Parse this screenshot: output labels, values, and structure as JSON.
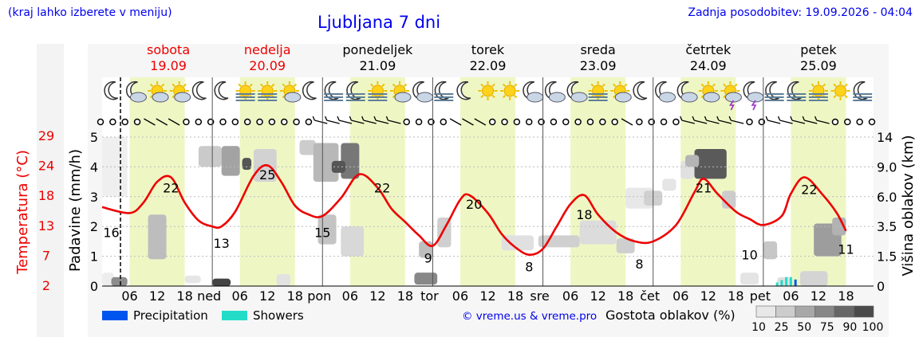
{
  "header": {
    "hint": "(kraj lahko izberete v meniju)",
    "title": "Ljubljana 7 dni",
    "updated": "Zadnja posodobitev: 19.09.2026 - 04:04"
  },
  "days": [
    {
      "name": "sobota",
      "date": "19.09",
      "weekend": true,
      "short": ""
    },
    {
      "name": "nedelja",
      "date": "20.09",
      "weekend": true,
      "short": "ned"
    },
    {
      "name": "ponedeljek",
      "date": "21.09",
      "weekend": false,
      "short": "pon"
    },
    {
      "name": "torek",
      "date": "22.09",
      "weekend": false,
      "short": "tor"
    },
    {
      "name": "sreda",
      "date": "23.09",
      "weekend": false,
      "short": "sre"
    },
    {
      "name": "četrtek",
      "date": "24.09",
      "weekend": false,
      "short": "čet"
    },
    {
      "name": "petek",
      "date": "25.09",
      "weekend": false,
      "short": "pet"
    }
  ],
  "hour_ticks": [
    "06",
    "12",
    "18"
  ],
  "legend": {
    "precipitation": "Precipitation",
    "showers": "Showers",
    "credit": "© vreme.us & vreme.pro",
    "cloud_title": "Gostota oblakov (%)",
    "cloud_levels": [
      "10",
      "25",
      "50",
      "75",
      "90",
      "100"
    ]
  },
  "colors": {
    "temperature": "#ee0000",
    "precipitation": "#0055ee",
    "showers": "#22dcc8",
    "daylight": "#eef7c4",
    "link": "#0000ee"
  },
  "icons": {
    "weather_row": [
      "moon-icon",
      "moon-cloud-icon",
      "sun-cloud-icon",
      "sun-cloud-icon",
      "moon-icon",
      "moon-icon",
      "sun-fog-icon",
      "sun-fog-icon",
      "sun-cloud-icon",
      "moon-icon",
      "moon-fog-icon",
      "moon-fog-icon",
      "sun-fog-icon",
      "sun-cloud-icon",
      "moon-cloud-icon",
      "moon-fog-icon",
      "moon-icon",
      "sun-icon",
      "sun-icon",
      "moon-cloud-icon",
      "moon-cloud-icon",
      "moon-cloud-icon",
      "sun-fog-icon",
      "sun-cloud-icon",
      "moon-icon",
      "moon-cloud-icon",
      "moon-cloud-icon",
      "sun-cloud-icon",
      "sun-storm-icon",
      "moon-storm-icon",
      "moon-fog-icon",
      "moon-fog-icon",
      "sun-fog-icon",
      "sun-icon",
      "moon-fog-icon"
    ],
    "wind_row": [
      "calm",
      "calm",
      "calm",
      "calm",
      "light-breeze",
      "light-breeze",
      "light-breeze",
      "calm",
      "calm",
      "calm",
      "calm",
      "calm",
      "calm",
      "calm",
      "calm",
      "calm",
      "calm",
      "calm",
      "breeze",
      "breeze",
      "breeze",
      "breeze",
      "breeze",
      "breeze",
      "breeze",
      "calm",
      "calm",
      "calm",
      "calm",
      "light-breeze",
      "light-breeze",
      "light-breeze",
      "calm",
      "calm",
      "calm",
      "calm",
      "calm",
      "calm",
      "calm",
      "calm",
      "calm",
      "calm",
      "calm",
      "light-breeze",
      "calm",
      "calm",
      "calm",
      "calm",
      "breeze",
      "breeze",
      "breeze",
      "breeze",
      "breeze",
      "calm",
      "calm",
      "breeze",
      "breeze",
      "breeze",
      "breeze",
      "breeze",
      "calm",
      "calm",
      "calm",
      "calm"
    ]
  },
  "chart_data": {
    "type": "line",
    "x_unit": "hours from 19.09 00:00",
    "ylabel_left": "Padavine (mm/h)",
    "ylabel_temp": "Temperatura (°C)",
    "ylabel_right": "Višina oblakov (km)",
    "precip_ylim": [
      0,
      5
    ],
    "precip_ticks": [
      "0",
      "1",
      "2",
      "3",
      "4",
      "5"
    ],
    "temp_ticks": [
      "2",
      "7",
      "13",
      "18",
      "24",
      "29"
    ],
    "cloud_km_ticks": [
      "0",
      "1.5",
      "3.5",
      "6.0",
      "9.0",
      "14"
    ],
    "temperature": [
      [
        0,
        2.65
      ],
      [
        6,
        2.45
      ],
      [
        9,
        2.8
      ],
      [
        12,
        3.5
      ],
      [
        15,
        3.65
      ],
      [
        18,
        2.8
      ],
      [
        21,
        2.2
      ],
      [
        24,
        2.0
      ],
      [
        26,
        2.0
      ],
      [
        29,
        2.5
      ],
      [
        33,
        3.7
      ],
      [
        36,
        4.05
      ],
      [
        39,
        3.5
      ],
      [
        42,
        2.7
      ],
      [
        45,
        2.4
      ],
      [
        48,
        2.35
      ],
      [
        52,
        2.95
      ],
      [
        56,
        3.75
      ],
      [
        60,
        3.3
      ],
      [
        63,
        2.6
      ],
      [
        66,
        2.15
      ],
      [
        69,
        1.7
      ],
      [
        72,
        1.35
      ],
      [
        75,
        2.05
      ],
      [
        78,
        2.9
      ],
      [
        80,
        3.05
      ],
      [
        84,
        2.45
      ],
      [
        87,
        1.75
      ],
      [
        90,
        1.3
      ],
      [
        93,
        1.05
      ],
      [
        96,
        1.25
      ],
      [
        99,
        2.0
      ],
      [
        102,
        2.75
      ],
      [
        105,
        3.05
      ],
      [
        108,
        2.4
      ],
      [
        112,
        1.8
      ],
      [
        116,
        1.5
      ],
      [
        120,
        1.5
      ],
      [
        125,
        2.05
      ],
      [
        129,
        3.15
      ],
      [
        131,
        3.6
      ],
      [
        134,
        3.1
      ],
      [
        138,
        2.5
      ],
      [
        141,
        2.25
      ],
      [
        144,
        2.05
      ],
      [
        148,
        2.35
      ],
      [
        150,
        3.1
      ],
      [
        153,
        3.65
      ],
      [
        157,
        3.05
      ],
      [
        160,
        2.45
      ],
      [
        162,
        1.85
      ]
    ],
    "temp_labels": [
      [
        2,
        "16",
        1.8
      ],
      [
        15,
        "22",
        3.3
      ],
      [
        26,
        "13",
        1.45
      ],
      [
        36,
        "25",
        3.75
      ],
      [
        48,
        "15",
        1.8
      ],
      [
        61,
        "22",
        3.3
      ],
      [
        71,
        "9",
        0.95
      ],
      [
        81,
        "20",
        2.75
      ],
      [
        93,
        "8",
        0.65
      ],
      [
        105,
        "18",
        2.4
      ],
      [
        117,
        "8",
        0.75
      ],
      [
        131,
        "21",
        3.3
      ],
      [
        141,
        "10",
        1.05
      ],
      [
        154,
        "22",
        3.25
      ],
      [
        162,
        "11",
        1.25
      ]
    ],
    "showers": [
      [
        147,
        0.12
      ],
      [
        148,
        0.2
      ],
      [
        149,
        0.3
      ],
      [
        150,
        0.3
      ]
    ],
    "precipitation": [
      [
        151,
        0.22
      ]
    ],
    "cloud_cover": [
      [
        1,
        7.5,
        0.2,
        5
      ],
      [
        3,
        8.5,
        0.0,
        0.35
      ],
      [
        2,
        3.5,
        2.3,
        4
      ],
      [
        11,
        1.5,
        1.0,
        2.3
      ],
      [
        5,
        1.0,
        2.0,
        1
      ],
      [
        22,
        2.5,
        4.1,
        4.6
      ],
      [
        27,
        4.0,
        3.6,
        4.6
      ],
      [
        33,
        6.0,
        3.2,
        4.6
      ],
      [
        30,
        3,
        3.9,
        4.2
      ],
      [
        24,
        4,
        0.0,
        0.3
      ],
      [
        44,
        3.0,
        3.5,
        4.0
      ],
      [
        56,
        4.5,
        4.0,
        4.6
      ],
      [
        50,
        5,
        3.0,
        4.2
      ],
      [
        48,
        2.5,
        2.5,
        3.2
      ],
      [
        54,
        6,
        1.0,
        2.0
      ],
      [
        47,
        2.2,
        1.6,
        2.2
      ],
      [
        70,
        4.0,
        0.0,
        0.4
      ],
      [
        73,
        2.5,
        1.5,
        2.3
      ],
      [
        71,
        2,
        0.9,
        1.5
      ],
      [
        93,
        3.0,
        1.0,
        1.6
      ],
      [
        110,
        5.0,
        1.4,
        2.3
      ],
      [
        101,
        3,
        1.6,
        1.9
      ],
      [
        100,
        2,
        0.8,
        1.2
      ],
      [
        118,
        4.5,
        2.6,
        3.3
      ],
      [
        114,
        2,
        1.0,
        1.5
      ],
      [
        124,
        2,
        3.2,
        3.6
      ],
      [
        131,
        6.0,
        3.6,
        4.6
      ],
      [
        127,
        2,
        3.6,
        4.0
      ],
      [
        146,
        3,
        1.0,
        2.0
      ],
      [
        140,
        3.5,
        0.1,
        0.4
      ],
      [
        148,
        2,
        0.0,
        0.35
      ],
      [
        156,
        6.0,
        0.9,
        2.1
      ],
      [
        159,
        2,
        1.8,
        2.3
      ]
    ],
    "cloud_layers": [
      [
        0,
        2.6,
        0.0,
        0.45,
        "#ededed"
      ],
      [
        0,
        5.5,
        3.0,
        5.0,
        "#efefef"
      ],
      [
        2,
        3.5,
        0.0,
        0.3,
        "#8c8c8c"
      ],
      [
        10,
        4,
        0.9,
        2.4,
        "#bdbdbd"
      ],
      [
        18,
        3.5,
        0.1,
        0.35,
        "#e6e6e6"
      ],
      [
        21,
        5,
        4.0,
        4.7,
        "#cacaca"
      ],
      [
        24,
        4,
        0.0,
        0.25,
        "#444444"
      ],
      [
        26,
        4.0,
        3.7,
        4.7,
        "#a3a3a3"
      ],
      [
        33,
        5.0,
        3.5,
        4.6,
        "#d2d2d2"
      ],
      [
        30.5,
        2,
        3.9,
        4.3,
        "#555555"
      ],
      [
        38,
        3,
        0.0,
        0.4,
        "#e2e2e2"
      ],
      [
        43,
        3.5,
        4.4,
        4.9,
        "#cccccc"
      ],
      [
        46,
        5.5,
        3.5,
        4.8,
        "#b8b8b8"
      ],
      [
        52,
        4,
        3.6,
        4.8,
        "#777777"
      ],
      [
        50,
        3,
        3.8,
        4.2,
        "#555555"
      ],
      [
        47,
        4,
        1.4,
        2.4,
        "#c4c4c4"
      ],
      [
        52,
        5,
        1.0,
        2.0,
        "#d8d8d8"
      ],
      [
        68,
        5,
        0.05,
        0.45,
        "#888888"
      ],
      [
        73,
        3,
        1.3,
        2.3,
        "#cfcfcf"
      ],
      [
        69,
        3,
        0.95,
        1.5,
        "#bebebe"
      ],
      [
        87,
        7,
        1.2,
        1.7,
        "#e0e0e0"
      ],
      [
        95,
        9,
        1.3,
        1.7,
        "#d0d0d0"
      ],
      [
        104,
        8,
        1.4,
        2.2,
        "#dcdcdc"
      ],
      [
        112,
        4,
        1.1,
        1.6,
        "#cfcfcf"
      ],
      [
        114,
        6,
        2.6,
        3.3,
        "#e8e8e8"
      ],
      [
        118,
        4,
        2.7,
        3.2,
        "#d0d0d0"
      ],
      [
        122,
        3,
        3.2,
        3.6,
        "#e5e5e5"
      ],
      [
        126,
        3,
        3.6,
        4.2,
        "#e0e0e0"
      ],
      [
        129,
        7,
        3.6,
        4.6,
        "#5a5a5a"
      ],
      [
        127,
        3,
        4.0,
        4.4,
        "#b5b5b5"
      ],
      [
        135,
        3,
        2.6,
        3.2,
        "#cccccc"
      ],
      [
        139,
        4,
        0.05,
        0.45,
        "#e4e4e4"
      ],
      [
        144,
        3,
        0.9,
        1.5,
        "#c7c7c7"
      ],
      [
        147,
        3,
        0.0,
        0.3,
        "#e0e0e0"
      ],
      [
        152,
        6,
        0.0,
        0.5,
        "#d4d4d4"
      ],
      [
        155,
        6,
        1.0,
        2.1,
        "#9d9d9d"
      ],
      [
        159,
        3,
        1.7,
        2.3,
        "#b2b2b2"
      ]
    ]
  }
}
